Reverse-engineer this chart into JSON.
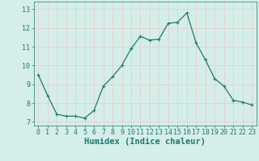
{
  "x": [
    0,
    1,
    2,
    3,
    4,
    5,
    6,
    7,
    8,
    9,
    10,
    11,
    12,
    13,
    14,
    15,
    16,
    17,
    18,
    19,
    20,
    21,
    22,
    23
  ],
  "y": [
    9.5,
    8.4,
    7.4,
    7.3,
    7.3,
    7.2,
    7.6,
    8.9,
    9.4,
    10.0,
    10.9,
    11.55,
    11.35,
    11.4,
    12.25,
    12.3,
    12.8,
    11.2,
    10.3,
    9.3,
    8.9,
    8.15,
    8.05,
    7.9
  ],
  "line_color": "#1a7a6e",
  "marker": "+",
  "marker_size": 3,
  "bg_color": "#d5eee9",
  "grid_major_color": "#e8c8c8",
  "grid_minor_color": "#e8e0e0",
  "xlabel": "Humidex (Indice chaleur)",
  "xlabel_fontsize": 7.5,
  "ytick_labels": [
    "7",
    "8",
    "9",
    "10",
    "11",
    "12",
    "13"
  ],
  "ytick_values": [
    7,
    8,
    9,
    10,
    11,
    12,
    13
  ],
  "ylim": [
    6.8,
    13.4
  ],
  "xlim": [
    -0.5,
    23.5
  ],
  "xtick_values": [
    0,
    1,
    2,
    3,
    4,
    5,
    6,
    7,
    8,
    9,
    10,
    11,
    12,
    13,
    14,
    15,
    16,
    17,
    18,
    19,
    20,
    21,
    22,
    23
  ],
  "tick_fontsize": 6,
  "line_width": 0.9,
  "tick_color": "#1a7a6e"
}
